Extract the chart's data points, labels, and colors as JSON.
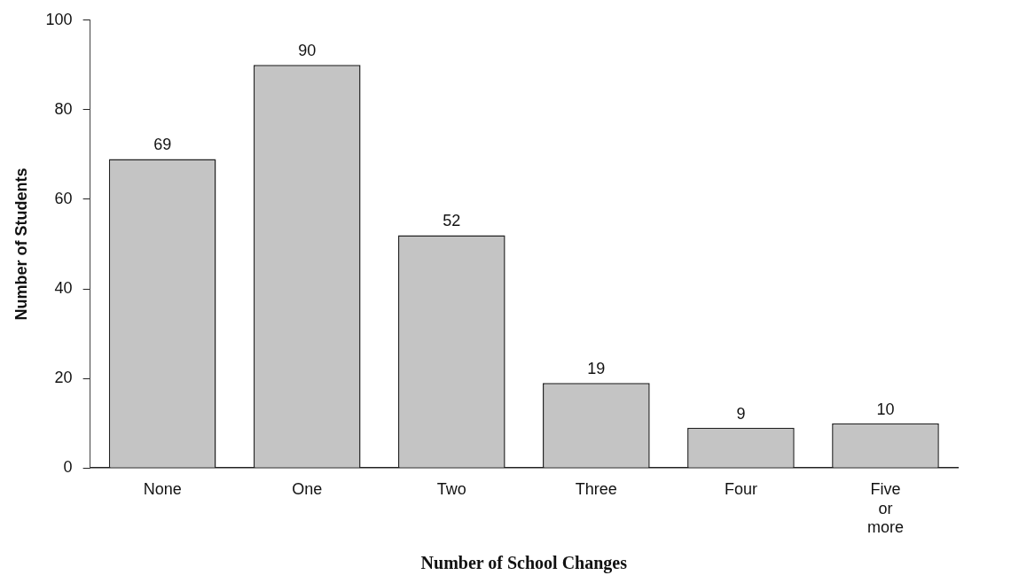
{
  "chart_data": {
    "type": "bar",
    "xlabel": "Number of School Changes",
    "ylabel": "Number of Students",
    "categories": [
      "None",
      "One",
      "Two",
      "Three",
      "Four",
      "Five or more"
    ],
    "values": [
      69,
      90,
      52,
      19,
      9,
      10
    ],
    "color": "#c4c4c4",
    "ylim": [
      0,
      100
    ],
    "yticks": [
      0,
      20,
      40,
      60,
      80,
      100
    ],
    "grid": false,
    "legend": false,
    "data_labels": true
  }
}
